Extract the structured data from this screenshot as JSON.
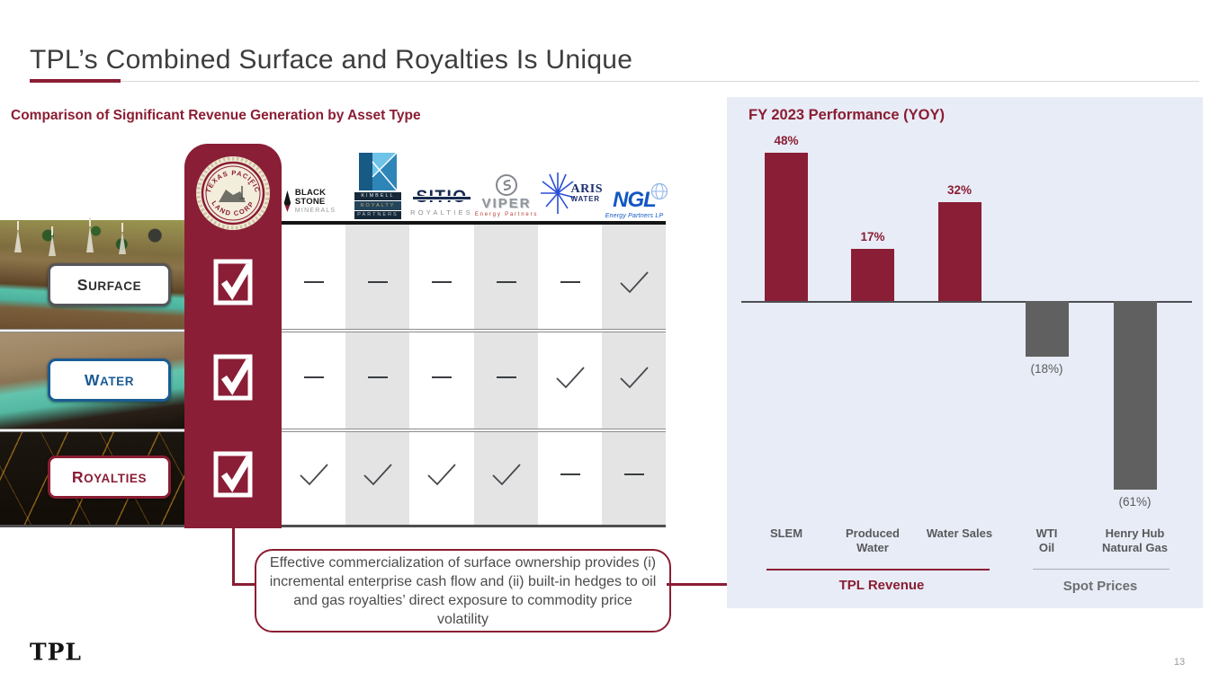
{
  "page": {
    "title": "TPL’s Combined Surface and Royalties Is Unique",
    "footer_logo": "TPL",
    "page_number": "13"
  },
  "comparison": {
    "heading": "Comparison of Significant Revenue Generation by Asset Type",
    "tpl_seal": {
      "arc_top": "TEXAS PACIFIC",
      "arc_bottom": "LAND CORP"
    },
    "row_labels": [
      "Surface",
      "Water",
      "Royalties"
    ],
    "tpl_column": [
      "check",
      "check",
      "check"
    ],
    "competitors": [
      {
        "name": "Black Stone Minerals",
        "line1": "BLACK STONE",
        "line2": "MINERALS"
      },
      {
        "name": "Kimbell Royalty Partners",
        "bands": [
          "KIMBELL",
          "ROYALTY",
          "PARTNERS"
        ]
      },
      {
        "name": "Sitio Royalties",
        "line1": "SITIO",
        "line2": "ROYALTIES"
      },
      {
        "name": "Viper Energy Partners",
        "line1": "VIPER",
        "line2": "Energy Partners"
      },
      {
        "name": "Aris Water",
        "line1": "ARIS",
        "line2": "WATER"
      },
      {
        "name": "NGL Energy Partners LP",
        "line1": "NGL",
        "line2": "Energy Partners LP"
      }
    ],
    "matrix": [
      [
        "dash",
        "dash",
        "dash",
        "dash",
        "dash",
        "check"
      ],
      [
        "dash",
        "dash",
        "dash",
        "dash",
        "check",
        "check"
      ],
      [
        "check",
        "check",
        "check",
        "check",
        "dash",
        "dash"
      ]
    ]
  },
  "callout": {
    "text": "Effective commercialization of surface ownership provides (i) incremental enterprise cash flow and (ii) built-in hedges to oil and gas royalties’ direct exposure to commodity price volatility"
  },
  "chart_data": {
    "type": "bar",
    "title": "FY 2023 Performance (YOY)",
    "categories": [
      "SLEM",
      "Produced Water",
      "Water Sales",
      "WTI Oil",
      "Henry Hub Natural Gas"
    ],
    "categories_lines": [
      [
        "SLEM"
      ],
      [
        "Produced",
        "Water"
      ],
      [
        "Water Sales"
      ],
      [
        "WTI",
        "Oil"
      ],
      [
        "Henry Hub",
        "Natural Gas"
      ]
    ],
    "values": [
      48,
      17,
      32,
      -18,
      -61
    ],
    "data_labels": [
      "48%",
      "17%",
      "32%",
      "(18%)",
      "(61%)"
    ],
    "series_colors": [
      "#8a1e36",
      "#8a1e36",
      "#8a1e36",
      "#606060",
      "#606060"
    ],
    "groups": [
      {
        "label": "TPL Revenue",
        "color": "#8a1d33",
        "categories": [
          "SLEM",
          "Produced Water",
          "Water Sales"
        ]
      },
      {
        "label": "Spot Prices",
        "color": "#6d6e71",
        "categories": [
          "WTI Oil",
          "Henry Hub Natural Gas"
        ]
      }
    ],
    "baseline": 0,
    "ylim": [
      -70,
      55
    ],
    "grid": false,
    "legend": false,
    "background": "#e8ecf6"
  },
  "colors": {
    "maroon": "#8a1d33",
    "bar_maroon": "#8a1e36",
    "bar_gray": "#606060",
    "chart_bg": "#e8ecf6",
    "stripe_gray": "#e4e4e5",
    "water_blue": "#1a5b94",
    "text_dark": "#414042"
  }
}
